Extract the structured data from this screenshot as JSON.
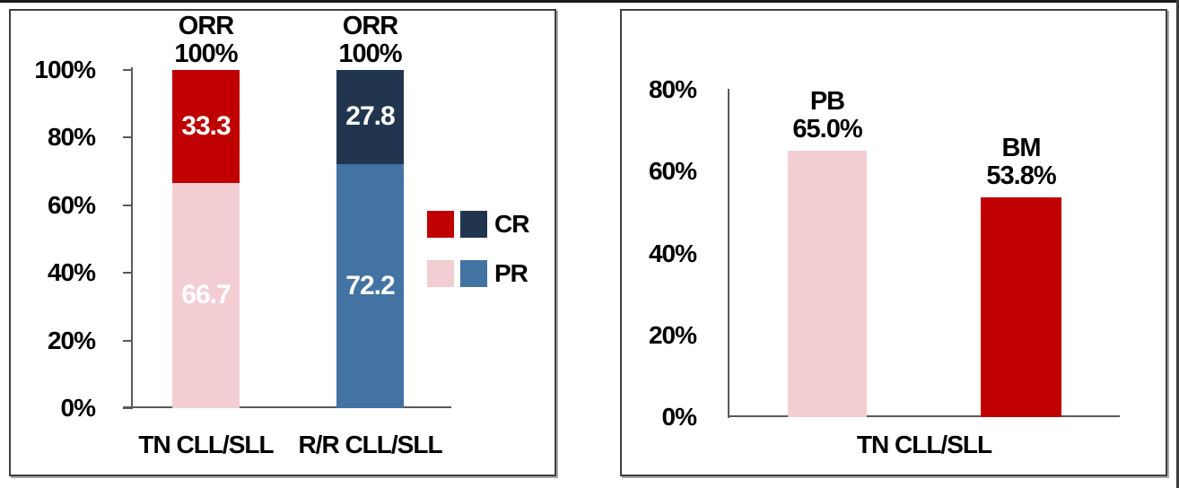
{
  "page_edges": {
    "top_line_color": "#1b1b1b",
    "right_line_color": "#3d3d3d"
  },
  "colors": {
    "cr_red": "#C00000",
    "pr_pink": "#F2CED3",
    "cr_navy": "#21354F",
    "pr_blue": "#4273A3",
    "panel_border": "#3E3E3E",
    "axis_gray": "#595959",
    "text_black": "#000000",
    "value_label_white": "#FFFFFF"
  },
  "chart_data": [
    {
      "type": "bar",
      "subtype": "stacked",
      "title": "",
      "categories": [
        "TN CLL/SLL",
        "R/R CLL/SLL"
      ],
      "series": [
        {
          "name": "PR",
          "values": [
            66.7,
            72.2
          ],
          "colors": [
            "#F2CED3",
            "#4273A3"
          ]
        },
        {
          "name": "CR",
          "values": [
            33.3,
            27.8
          ],
          "colors": [
            "#C00000",
            "#21354F"
          ]
        }
      ],
      "bar_totals": [
        {
          "title": "ORR",
          "value": "100%"
        },
        {
          "title": "ORR",
          "value": "100%"
        }
      ],
      "y_ticks": [
        "100%",
        "80%",
        "60%",
        "40%",
        "20%",
        "0%"
      ],
      "ylim": [
        0,
        100
      ],
      "grid": false,
      "legend_position": "right-middle",
      "legend": [
        {
          "label": "CR",
          "swatches": [
            "#C00000",
            "#21354F"
          ]
        },
        {
          "label": "PR",
          "swatches": [
            "#F2CED3",
            "#4273A3"
          ]
        }
      ]
    },
    {
      "type": "bar",
      "title": "",
      "categories": [
        "PB",
        "BM"
      ],
      "x_axis_label": "TN CLL/SLL",
      "bars": [
        {
          "name": "PB",
          "value": 65.0,
          "label": "65.0%",
          "color": "#F2CED3"
        },
        {
          "name": "BM",
          "value": 53.8,
          "label": "53.8%",
          "color": "#C00000"
        }
      ],
      "y_ticks": [
        "80%",
        "60%",
        "40%",
        "20%",
        "0%"
      ],
      "ylim": [
        0,
        80
      ],
      "grid": false,
      "legend": []
    }
  ]
}
